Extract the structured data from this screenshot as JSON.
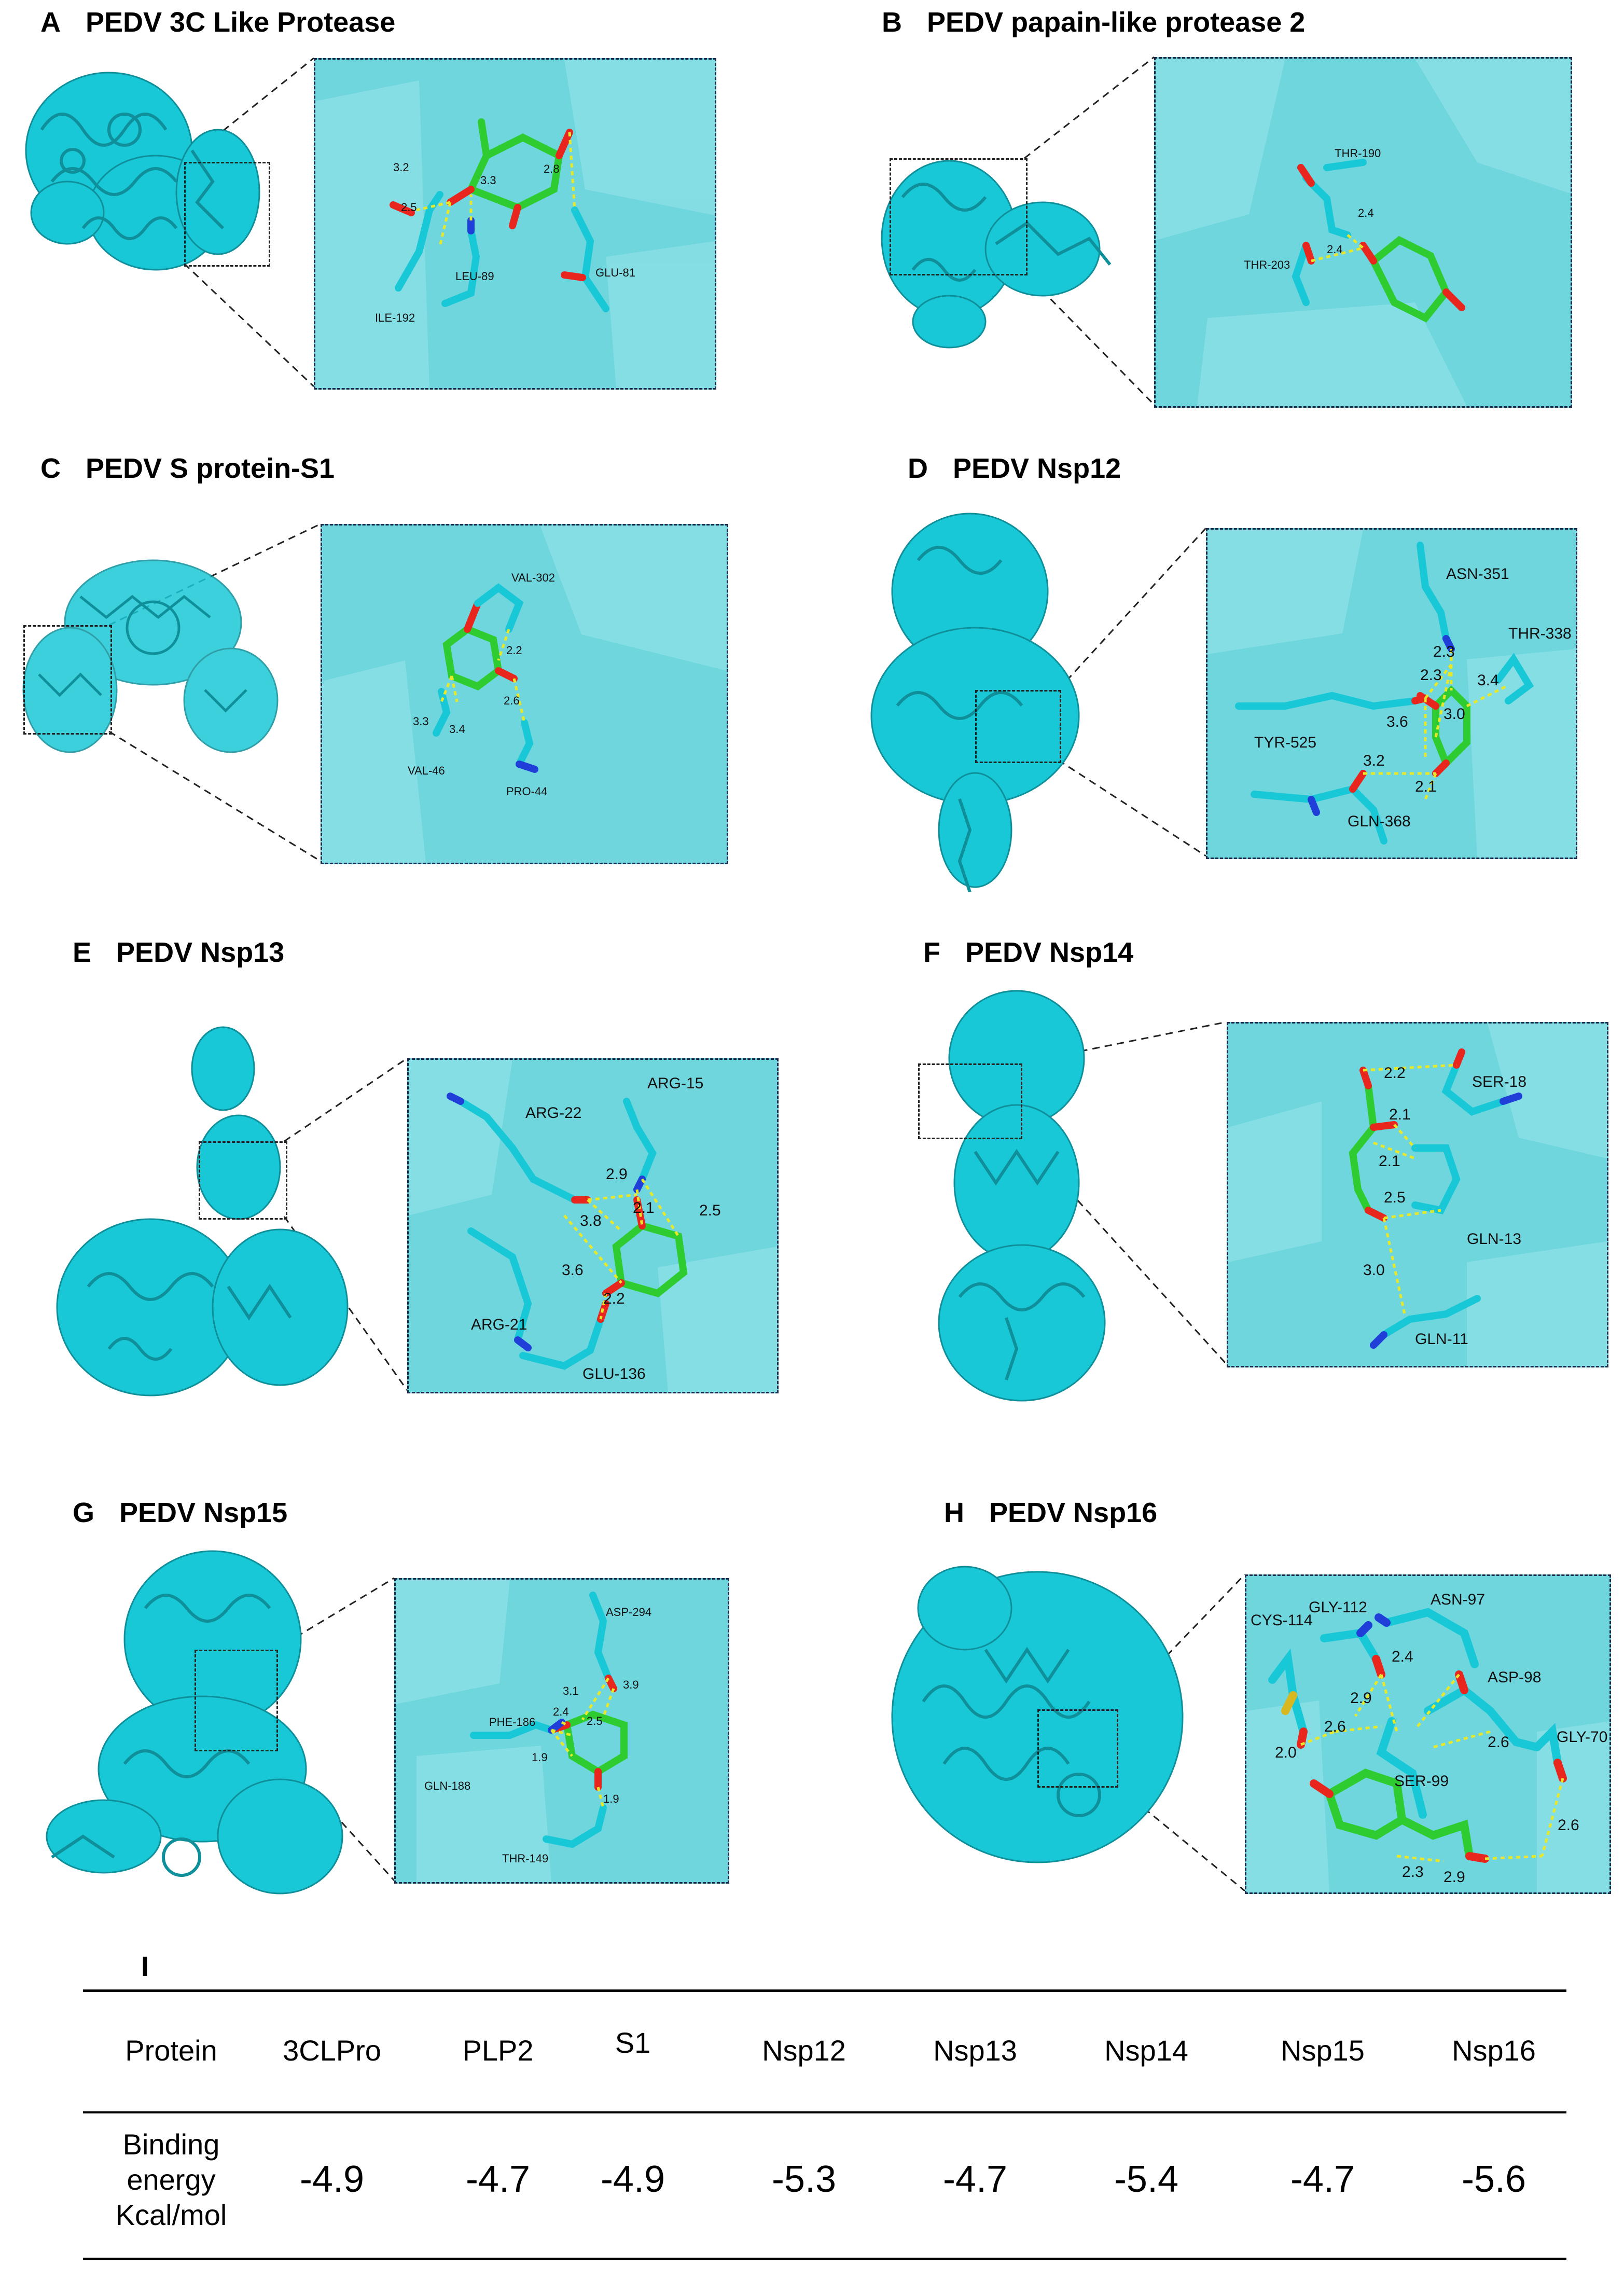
{
  "panels": [
    {
      "id": "A",
      "letter": "A",
      "title": "PEDV 3C Like Protease",
      "residues": [
        "ILE-192",
        "LEU-89",
        "GLU-81"
      ],
      "distances": [
        "3.2",
        "2.5",
        "3.3",
        "2.8"
      ]
    },
    {
      "id": "B",
      "letter": "B",
      "title": "PEDV papain-like protease 2",
      "residues": [
        "THR-190",
        "THR-203"
      ],
      "distances": [
        "2.4",
        "2.4"
      ]
    },
    {
      "id": "C",
      "letter": "C",
      "title": "PEDV S protein-S1",
      "residues": [
        "VAL-302",
        "VAL-46",
        "PRO-44"
      ],
      "distances": [
        "2.2",
        "2.6",
        "3.3",
        "3.4"
      ]
    },
    {
      "id": "D",
      "letter": "D",
      "title": "PEDV Nsp12",
      "residues": [
        "ASN-351",
        "THR-338",
        "TYR-525",
        "GLN-368"
      ],
      "distances": [
        "2.3",
        "2.3",
        "3.4",
        "3.6",
        "3.0",
        "3.2",
        "2.1"
      ]
    },
    {
      "id": "E",
      "letter": "E",
      "title": "PEDV Nsp13",
      "residues": [
        "ARG-15",
        "ARG-22",
        "ARG-21",
        "GLU-136"
      ],
      "distances": [
        "2.9",
        "2.1",
        "2.5",
        "3.8",
        "3.6",
        "2.2"
      ]
    },
    {
      "id": "F",
      "letter": "F",
      "title": "PEDV Nsp14",
      "residues": [
        "SER-18",
        "GLN-13",
        "GLN-11"
      ],
      "distances": [
        "2.2",
        "2.1",
        "2.1",
        "2.5",
        "3.0"
      ]
    },
    {
      "id": "G",
      "letter": "G",
      "title": "PEDV Nsp15",
      "residues": [
        "ASP-294",
        "PHE-186",
        "GLN-188",
        "THR-149"
      ],
      "distances": [
        "3.1",
        "3.9",
        "2.4",
        "2.5",
        "1.9",
        "1.9"
      ]
    },
    {
      "id": "H",
      "letter": "H",
      "title": "PEDV Nsp16",
      "residues": [
        "CYS-114",
        "GLY-112",
        "ASN-97",
        "ASP-98",
        "GLY-70",
        "SER-99"
      ],
      "distances": [
        "2.4",
        "2.9",
        "2.6",
        "2.6",
        "2.0",
        "2.6",
        "2.3",
        "2.9"
      ]
    }
  ],
  "table": {
    "letter": "I",
    "header_label": "Protein",
    "row_label": [
      "Binding",
      "energy",
      "Kcal/mol"
    ],
    "proteins": [
      "3CLPro",
      "PLP2",
      "S1",
      "Nsp12",
      "Nsp13",
      "Nsp14",
      "Nsp15",
      "Nsp16"
    ],
    "binding_energy": [
      "-4.9",
      "-4.7",
      "-4.9",
      "-5.3",
      "-4.7",
      "-5.4",
      "-4.7",
      "-5.6"
    ]
  },
  "colors": {
    "protein": "#19c8d6",
    "ligand": "#2ecc30",
    "oxygen": "#e8261d",
    "nitrogen": "#1f3fd8",
    "hbond": "#e8e82a",
    "zoom_bg": "#6fd6de"
  }
}
